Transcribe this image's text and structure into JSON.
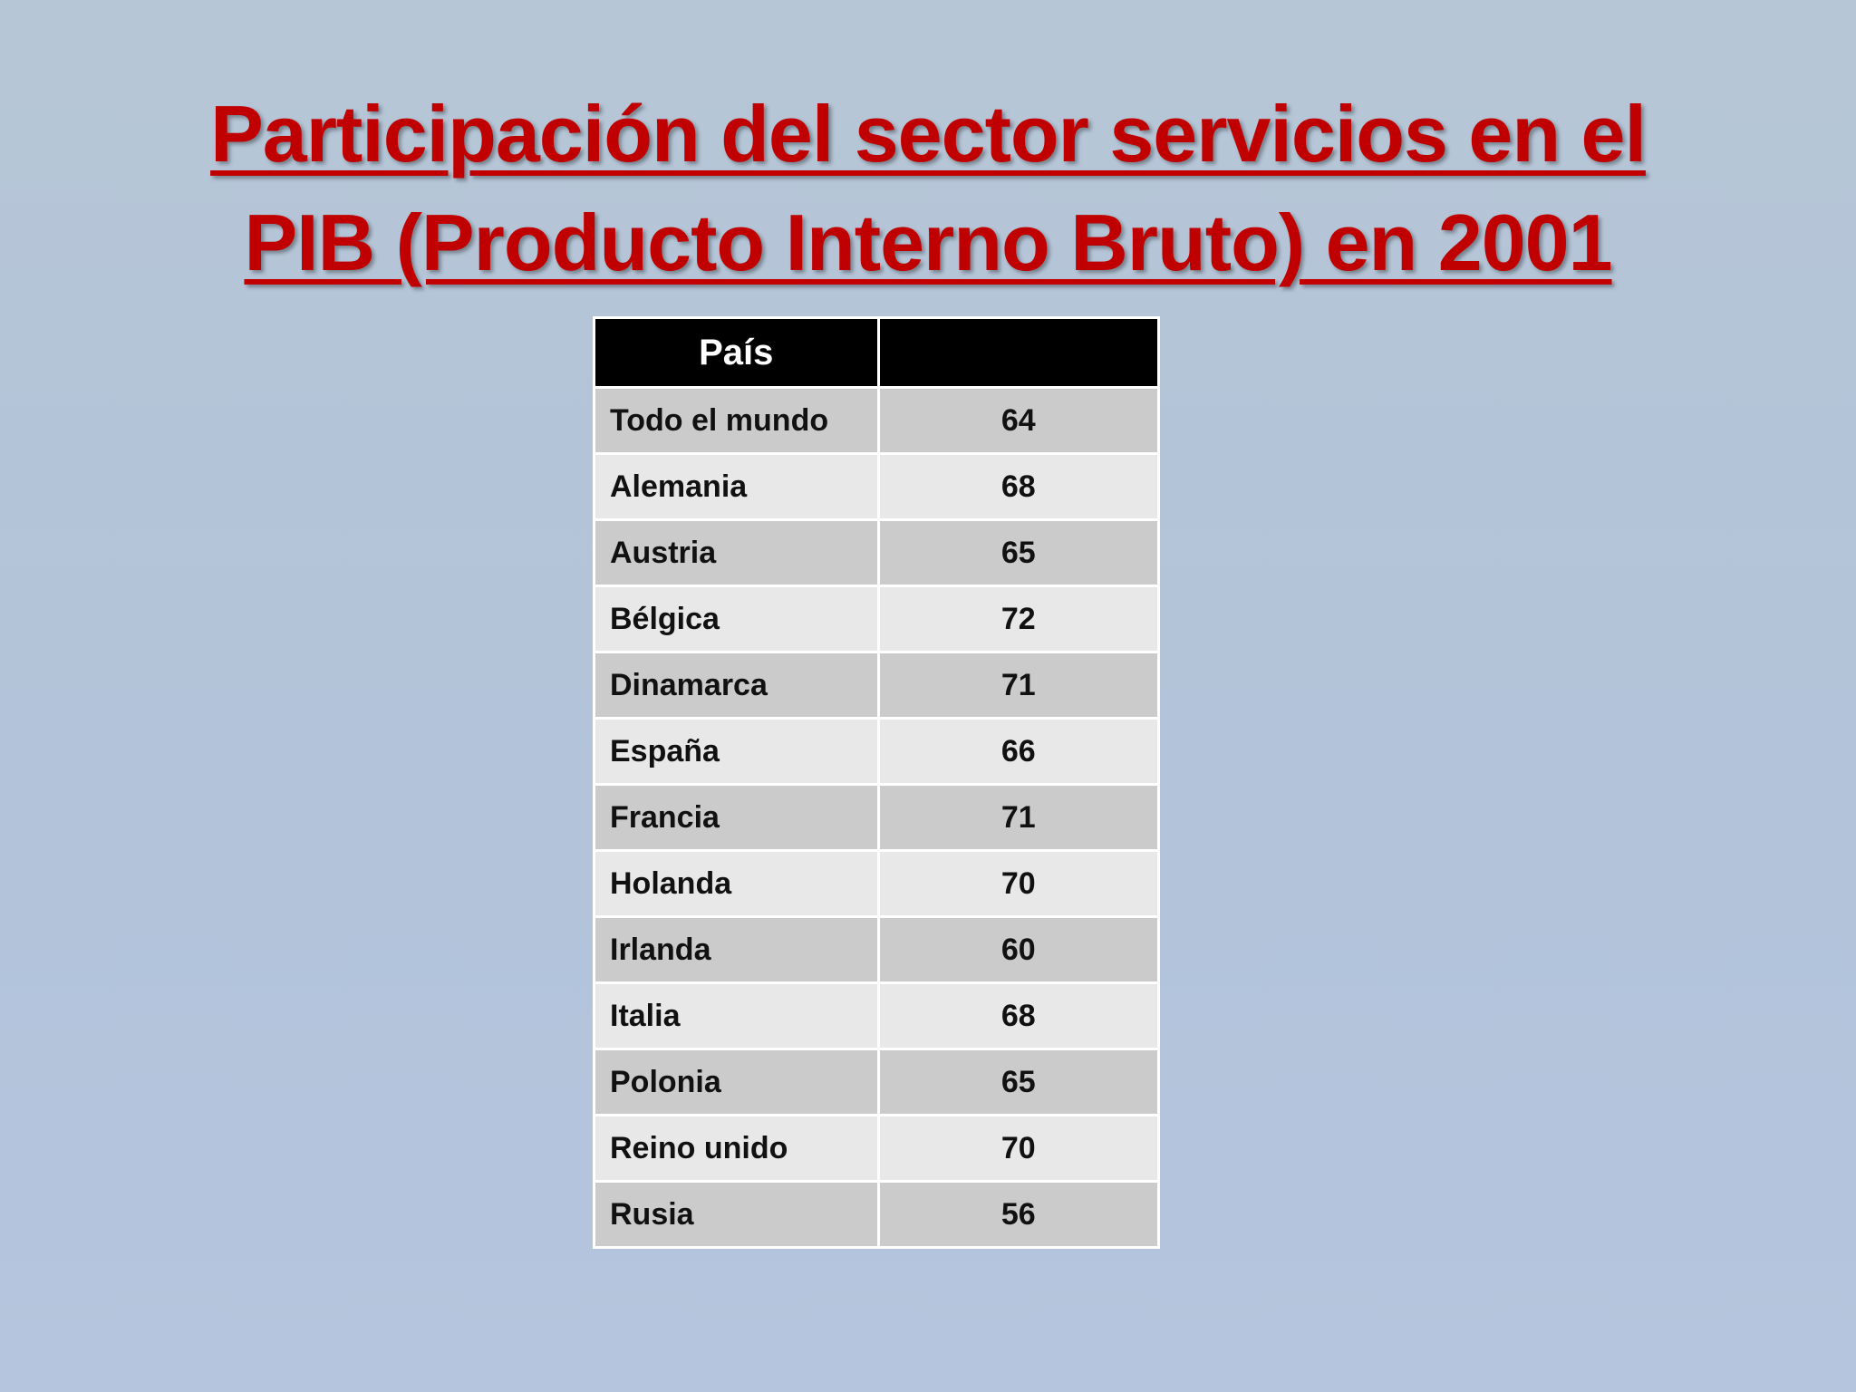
{
  "title": {
    "line1": "Participación del sector servicios en el",
    "line2": "PIB (Producto Interno Bruto) en 2001"
  },
  "table": {
    "headers": [
      "País",
      ""
    ],
    "rows": [
      {
        "country": "Todo el mundo",
        "value": "64"
      },
      {
        "country": "Alemania",
        "value": "68"
      },
      {
        "country": "Austria",
        "value": "65"
      },
      {
        "country": "Bélgica",
        "value": "72"
      },
      {
        "country": "Dinamarca",
        "value": "71"
      },
      {
        "country": "España",
        "value": "66"
      },
      {
        "country": "Francia",
        "value": "71"
      },
      {
        "country": "Holanda",
        "value": "70"
      },
      {
        "country": "Irlanda",
        "value": "60"
      },
      {
        "country": "Italia",
        "value": "68"
      },
      {
        "country": "Polonia",
        "value": "65"
      },
      {
        "country": "Reino unido",
        "value": "70"
      },
      {
        "country": "Rusia",
        "value": "56"
      }
    ]
  },
  "colors": {
    "title": "#c00000",
    "header_bg": "#000000",
    "row_dark": "#cbcbcc",
    "row_light": "#e8e8e9",
    "background": "#b4c5dc"
  }
}
